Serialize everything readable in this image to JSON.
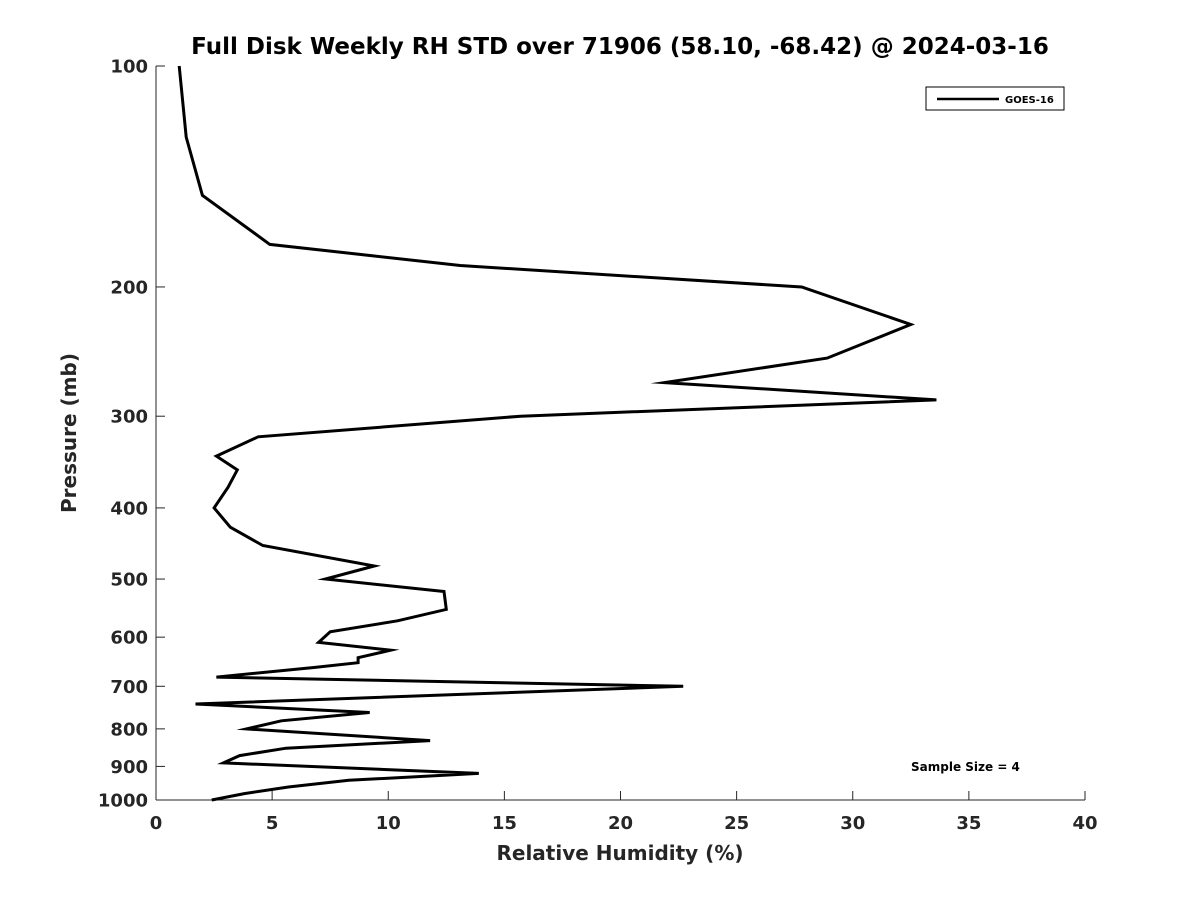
{
  "chart_data": {
    "type": "line",
    "title": "Full Disk Weekly RH STD over 71906 (58.10, -68.42) @ 2024-03-16",
    "xlabel": "Relative Humidity (%)",
    "ylabel": "Pressure (mb)",
    "xlim": [
      0,
      40
    ],
    "ylim": [
      1000,
      100
    ],
    "y_scale": "log",
    "y_reversed": true,
    "grid": false,
    "legend_position": "top-right",
    "x_ticks": [
      0,
      5,
      10,
      15,
      20,
      25,
      30,
      35,
      40
    ],
    "y_ticks": [
      100,
      200,
      300,
      400,
      500,
      600,
      700,
      800,
      900,
      1000
    ],
    "annotation": "Sample Size = 4",
    "series": [
      {
        "name": "GOES-16",
        "color": "#000000",
        "points": [
          [
            1.0,
            100
          ],
          [
            1.3,
            125
          ],
          [
            2.0,
            150
          ],
          [
            4.9,
            175
          ],
          [
            13.1,
            187
          ],
          [
            27.8,
            200
          ],
          [
            32.5,
            225
          ],
          [
            28.9,
            250
          ],
          [
            21.9,
            270
          ],
          [
            33.6,
            285
          ],
          [
            15.7,
            300
          ],
          [
            4.4,
            320
          ],
          [
            2.6,
            340
          ],
          [
            3.5,
            355
          ],
          [
            3.1,
            375
          ],
          [
            2.5,
            400
          ],
          [
            3.2,
            425
          ],
          [
            4.6,
            450
          ],
          [
            9.4,
            480
          ],
          [
            7.3,
            500
          ],
          [
            12.4,
            520
          ],
          [
            12.5,
            550
          ],
          [
            10.4,
            570
          ],
          [
            7.5,
            590
          ],
          [
            7.0,
            610
          ],
          [
            10.1,
            625
          ],
          [
            8.7,
            640
          ],
          [
            8.7,
            650
          ],
          [
            6.8,
            660
          ],
          [
            2.6,
            680
          ],
          [
            22.7,
            700
          ],
          [
            1.7,
            740
          ],
          [
            9.2,
            760
          ],
          [
            5.4,
            780
          ],
          [
            3.9,
            800
          ],
          [
            11.8,
            830
          ],
          [
            5.6,
            850
          ],
          [
            3.6,
            870
          ],
          [
            2.9,
            890
          ],
          [
            13.9,
            920
          ],
          [
            8.3,
            940
          ],
          [
            5.7,
            960
          ],
          [
            3.8,
            980
          ],
          [
            2.4,
            1000
          ]
        ]
      }
    ]
  }
}
